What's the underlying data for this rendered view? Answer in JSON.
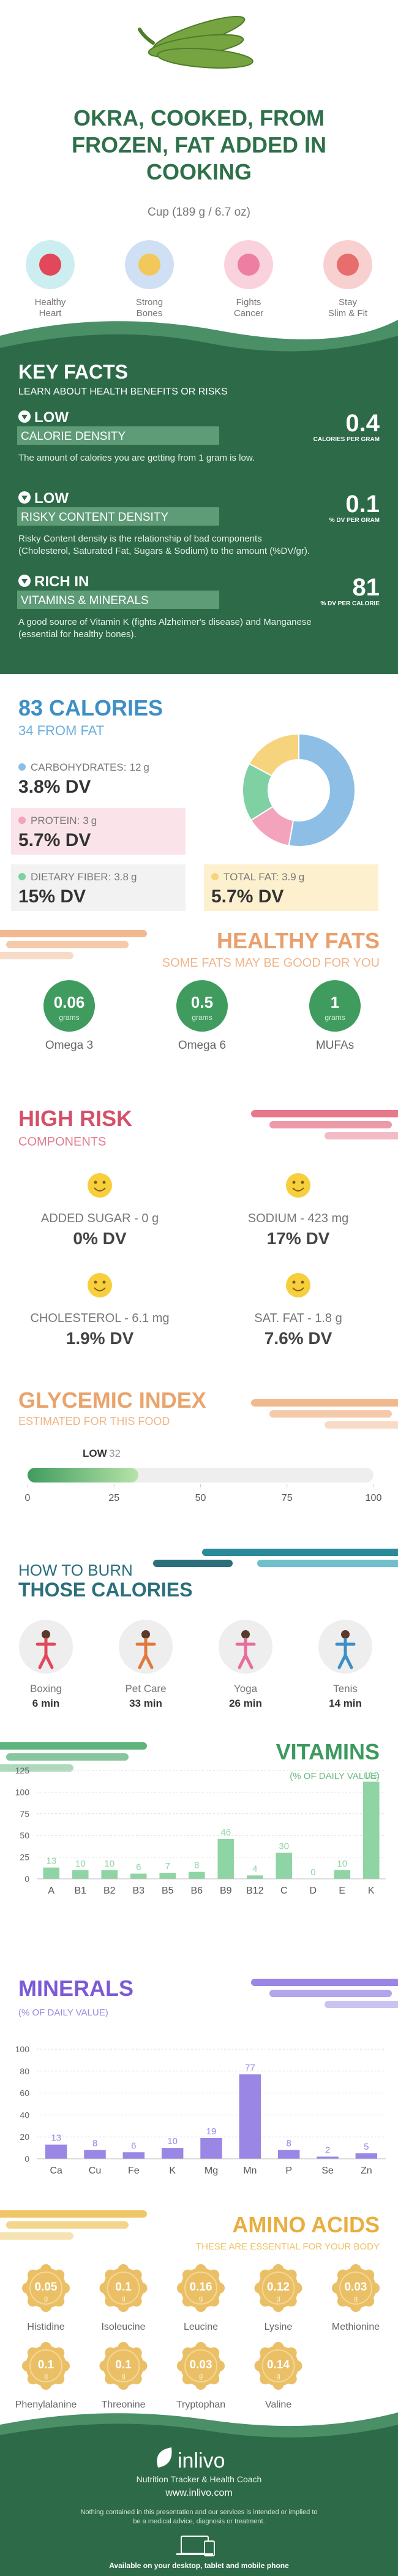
{
  "header": {
    "title": "OKRA, COOKED, FROM FROZEN, FAT ADDED IN COOKING",
    "serving": "Cup (189 g / 6.7 oz)"
  },
  "benefits": [
    "Healthy Heart",
    "Strong Bones",
    "Fights Cancer",
    "Stay Slim & Fit"
  ],
  "key_facts": {
    "title": "KEY FACTS",
    "subtitle": "LEARN ABOUT HEALTH BENEFITS OR RISKS",
    "items": [
      {
        "level": "LOW",
        "label": "CALORIE DENSITY",
        "text": "The amount of calories you are getting from 1 gram is low.",
        "value": 0.4,
        "unit": "CALORIES PER GRAM"
      },
      {
        "level": "LOW",
        "label": "RISKY CONTENT DENSITY",
        "text": "Risky Content density is the relationship of bad components (Cholesterol, Saturated Fat, Sugars & Sodium) to the amount (%DV/gr).",
        "value": 0.1,
        "unit": "% DV PER GRAM"
      },
      {
        "level": "RICH IN",
        "label": "VITAMINS & MINERALS",
        "text": "A good source of Vitamin K (fights Alzheimer's disease) and Manganese (essential for healthy bones).",
        "value": 81,
        "unit": "% DV PER CALORIE"
      }
    ]
  },
  "calories": {
    "title": "83 CALORIES",
    "from_fat": "34 FROM FAT",
    "nutrients": [
      {
        "name": "CARBOHYDRATES:",
        "amount": 12,
        "unit": "g",
        "dv": "3.8% DV",
        "color": "#8dbfe6"
      },
      {
        "name": "PROTEIN:",
        "amount": 3,
        "unit": "g",
        "dv": "5.7% DV",
        "color": "#f4a3bd"
      },
      {
        "name": "DIETARY FIBER:",
        "amount": 3.8,
        "unit": "g",
        "dv": "15% DV",
        "color": "#7fd1a3"
      },
      {
        "name": "TOTAL FAT:",
        "amount": 3.9,
        "unit": "g",
        "dv": "5.7% DV",
        "color": "#f6d47e"
      }
    ]
  },
  "healthy_fats": {
    "title": "HEALTHY FATS",
    "subtitle": "SOME FATS MAY BE GOOD FOR YOU",
    "unit": "grams",
    "items": [
      {
        "value": 0.06,
        "name": "Omega 3"
      },
      {
        "value": 0.5,
        "name": "Omega 6"
      },
      {
        "value": 1,
        "name": "MUFAs"
      }
    ]
  },
  "high_risk": {
    "title": "HIGH RISK",
    "subtitle": "COMPONENTS",
    "items": [
      {
        "name": "ADDED SUGAR - 0 g",
        "dv": "0% DV"
      },
      {
        "name": "SODIUM - 423 mg",
        "dv": "17% DV"
      },
      {
        "name": "CHOLESTEROL - 6.1 mg",
        "dv": "1.9% DV"
      },
      {
        "name": "SAT. FAT - 1.8 g",
        "dv": "7.6% DV"
      }
    ]
  },
  "glycemic": {
    "title": "GLYCEMIC INDEX",
    "subtitle": "ESTIMATED FOR THIS FOOD",
    "level": "LOW",
    "value": 32,
    "range": [
      0,
      100
    ],
    "ticks": [
      0,
      25,
      50,
      75,
      100
    ]
  },
  "burn": {
    "title": "HOW TO BURN",
    "title2": "THOSE CALORIES",
    "activities": [
      {
        "name": "Boxing",
        "time": "6 min"
      },
      {
        "name": "Pet Care",
        "time": "33 min"
      },
      {
        "name": "Yoga",
        "time": "26 min"
      },
      {
        "name": "Tenis",
        "time": "14 min"
      }
    ]
  },
  "chart_data": [
    {
      "type": "bar",
      "title": "VITAMINS",
      "subtitle": "(% OF DAILY VALUE)",
      "categories": [
        "A",
        "B1",
        "B2",
        "B3",
        "B5",
        "B6",
        "B9",
        "B12",
        "C",
        "D",
        "E",
        "K"
      ],
      "values": [
        13,
        10,
        10,
        6,
        7,
        8,
        46,
        4,
        30,
        0,
        10,
        112
      ],
      "color": "#8fd4a4",
      "ylim": [
        0,
        125
      ],
      "yticks": [
        0,
        25,
        50,
        75,
        100,
        125
      ],
      "grid": true
    },
    {
      "type": "bar",
      "title": "MINERALS",
      "subtitle": "(% OF DAILY VALUE)",
      "categories": [
        "Ca",
        "Cu",
        "Fe",
        "K",
        "Mg",
        "Mn",
        "P",
        "Se",
        "Zn"
      ],
      "values": [
        13,
        8,
        6,
        10,
        19,
        77,
        8,
        2,
        5
      ],
      "color": "#9a86e4",
      "ylim": [
        0,
        100
      ],
      "yticks": [
        0,
        20,
        40,
        60,
        80,
        100
      ],
      "grid": true
    }
  ],
  "amino_acids": {
    "title": "AMINO ACIDS",
    "subtitle": "THESE ARE ESSENTIAL FOR YOUR BODY",
    "unit": "g",
    "items": [
      {
        "name": "Histidine",
        "value": 0.05
      },
      {
        "name": "Isoleucine",
        "value": 0.1
      },
      {
        "name": "Leucine",
        "value": 0.16
      },
      {
        "name": "Lysine",
        "value": 0.12
      },
      {
        "name": "Methionine",
        "value": 0.03
      },
      {
        "name": "Phenylalanine",
        "value": 0.1
      },
      {
        "name": "Threonine",
        "value": 0.1
      },
      {
        "name": "Tryptophan",
        "value": 0.03
      },
      {
        "name": "Valine",
        "value": 0.14
      }
    ]
  },
  "footer": {
    "brand": "inlivo",
    "tagline": "Nutrition Tracker & Health Coach",
    "url": "www.inlivo.com",
    "disclaimer": "Nothing contained in this presentation and our services is intended or implied to be a medical advice, diagnosis or treatment.",
    "devices": "Available on your desktop, tablet and mobile phone"
  }
}
